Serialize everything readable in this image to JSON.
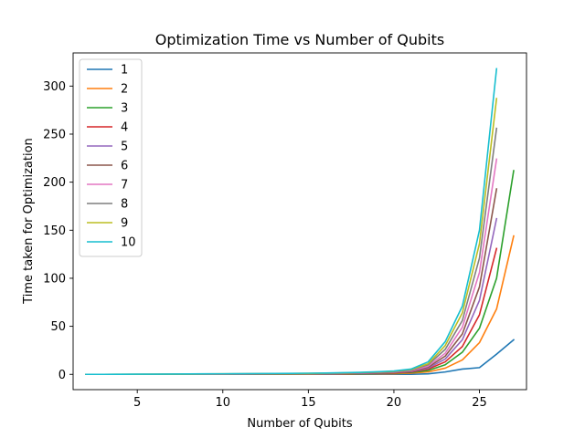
{
  "chart_data": {
    "type": "line",
    "title": "Optimization Time vs Number of Qubits",
    "xlabel": "Number of Qubits",
    "ylabel": "Time taken for Optimization",
    "xlim": [
      1.25,
      27.75
    ],
    "ylim": [
      -15.9,
      334.5
    ],
    "xticks": [
      5,
      10,
      15,
      20,
      25
    ],
    "yticks": [
      0,
      50,
      100,
      150,
      200,
      250,
      300
    ],
    "legend": "upper left",
    "grid": false,
    "series": [
      {
        "name": "1",
        "color": "#1f77b4",
        "x": [
          2,
          3,
          4,
          5,
          6,
          7,
          8,
          9,
          10,
          11,
          12,
          13,
          14,
          15,
          16,
          17,
          18,
          19,
          20,
          21,
          22,
          23,
          24,
          25,
          26,
          27
        ],
        "y": [
          0,
          0,
          0,
          0,
          0,
          0,
          0,
          0,
          0,
          0,
          0,
          0,
          0,
          0,
          0,
          0,
          0,
          0,
          0,
          0,
          0.5,
          2.5,
          5.5,
          7,
          21,
          36
        ]
      },
      {
        "name": "2",
        "color": "#ff7f0e",
        "x": [
          2,
          3,
          4,
          5,
          6,
          7,
          8,
          9,
          10,
          11,
          12,
          13,
          14,
          15,
          16,
          17,
          18,
          19,
          20,
          21,
          22,
          23,
          24,
          25,
          26,
          27
        ],
        "y": [
          0,
          0,
          0,
          0,
          0,
          0,
          0,
          0,
          0,
          0,
          0.1,
          0.1,
          0.2,
          0.2,
          0.3,
          0.3,
          0.4,
          0.5,
          0.7,
          1.2,
          2.5,
          6.5,
          15,
          33,
          68,
          144
        ]
      },
      {
        "name": "3",
        "color": "#2ca02c",
        "x": [
          2,
          3,
          4,
          5,
          6,
          7,
          8,
          9,
          10,
          11,
          12,
          13,
          14,
          15,
          16,
          17,
          18,
          19,
          20,
          21,
          22,
          23,
          24,
          25,
          26,
          27
        ],
        "y": [
          0,
          0,
          0,
          0,
          0,
          0,
          0,
          0,
          0.1,
          0.1,
          0.2,
          0.2,
          0.3,
          0.4,
          0.5,
          0.6,
          0.7,
          0.9,
          1.2,
          2,
          4,
          10,
          23,
          48,
          100,
          212
        ]
      },
      {
        "name": "4",
        "color": "#d62728",
        "x": [
          2,
          3,
          4,
          5,
          6,
          7,
          8,
          9,
          10,
          11,
          12,
          13,
          14,
          15,
          16,
          17,
          18,
          19,
          20,
          21,
          22,
          23,
          24,
          25,
          26
        ],
        "y": [
          0,
          0,
          0,
          0,
          0,
          0,
          0,
          0.1,
          0.1,
          0.2,
          0.2,
          0.3,
          0.4,
          0.5,
          0.6,
          0.7,
          0.9,
          1.1,
          1.5,
          2.5,
          5.5,
          13,
          29,
          62,
          131
        ]
      },
      {
        "name": "5",
        "color": "#9467bd",
        "x": [
          2,
          3,
          4,
          5,
          6,
          7,
          8,
          9,
          10,
          11,
          12,
          13,
          14,
          15,
          16,
          17,
          18,
          19,
          20,
          21,
          22,
          23,
          24,
          25,
          26
        ],
        "y": [
          0,
          0,
          0,
          0,
          0,
          0,
          0.1,
          0.1,
          0.2,
          0.2,
          0.3,
          0.4,
          0.5,
          0.6,
          0.7,
          0.9,
          1.1,
          1.4,
          1.9,
          3,
          6.5,
          16,
          36,
          77,
          162
        ]
      },
      {
        "name": "6",
        "color": "#8c564b",
        "x": [
          2,
          3,
          4,
          5,
          6,
          7,
          8,
          9,
          10,
          11,
          12,
          13,
          14,
          15,
          16,
          17,
          18,
          19,
          20,
          21,
          22,
          23,
          24,
          25,
          26
        ],
        "y": [
          0,
          0,
          0,
          0,
          0,
          0.1,
          0.1,
          0.2,
          0.2,
          0.3,
          0.4,
          0.5,
          0.6,
          0.7,
          0.9,
          1.1,
          1.3,
          1.7,
          2.2,
          3.5,
          7.5,
          19,
          42,
          91,
          193
        ]
      },
      {
        "name": "7",
        "color": "#e377c2",
        "x": [
          2,
          3,
          4,
          5,
          6,
          7,
          8,
          9,
          10,
          11,
          12,
          13,
          14,
          15,
          16,
          17,
          18,
          19,
          20,
          21,
          22,
          23,
          24,
          25,
          26
        ],
        "y": [
          0,
          0,
          0,
          0,
          0.1,
          0.1,
          0.2,
          0.2,
          0.3,
          0.4,
          0.5,
          0.6,
          0.7,
          0.8,
          1,
          1.2,
          1.5,
          1.9,
          2.6,
          4,
          8.5,
          22,
          49,
          106,
          224
        ]
      },
      {
        "name": "8",
        "color": "#7f7f7f",
        "x": [
          2,
          3,
          4,
          5,
          6,
          7,
          8,
          9,
          10,
          11,
          12,
          13,
          14,
          15,
          16,
          17,
          18,
          19,
          20,
          21,
          22,
          23,
          24,
          25,
          26
        ],
        "y": [
          0,
          0,
          0,
          0.1,
          0.1,
          0.2,
          0.2,
          0.3,
          0.4,
          0.5,
          0.6,
          0.7,
          0.8,
          0.9,
          1.1,
          1.3,
          1.7,
          2.1,
          2.9,
          4.5,
          10,
          26,
          56,
          121,
          256
        ]
      },
      {
        "name": "9",
        "color": "#bcbd22",
        "x": [
          2,
          3,
          4,
          5,
          6,
          7,
          8,
          9,
          10,
          11,
          12,
          13,
          14,
          15,
          16,
          17,
          18,
          19,
          20,
          21,
          22,
          23,
          24,
          25,
          26
        ],
        "y": [
          0,
          0,
          0.1,
          0.1,
          0.2,
          0.2,
          0.3,
          0.4,
          0.5,
          0.6,
          0.7,
          0.8,
          0.9,
          1,
          1.2,
          1.5,
          1.9,
          2.4,
          3.2,
          5,
          11,
          30,
          64,
          136,
          287
        ]
      },
      {
        "name": "10",
        "color": "#17becf",
        "x": [
          2,
          3,
          4,
          5,
          6,
          7,
          8,
          9,
          10,
          11,
          12,
          13,
          14,
          15,
          16,
          17,
          18,
          19,
          20,
          21,
          22,
          23,
          24,
          25,
          26
        ],
        "y": [
          0,
          0,
          0.1,
          0.2,
          0.2,
          0.3,
          0.4,
          0.5,
          0.6,
          0.7,
          0.8,
          0.9,
          1,
          1.2,
          1.4,
          1.7,
          2.1,
          2.7,
          3.5,
          5.5,
          13,
          34,
          71,
          150,
          318
        ]
      }
    ]
  }
}
